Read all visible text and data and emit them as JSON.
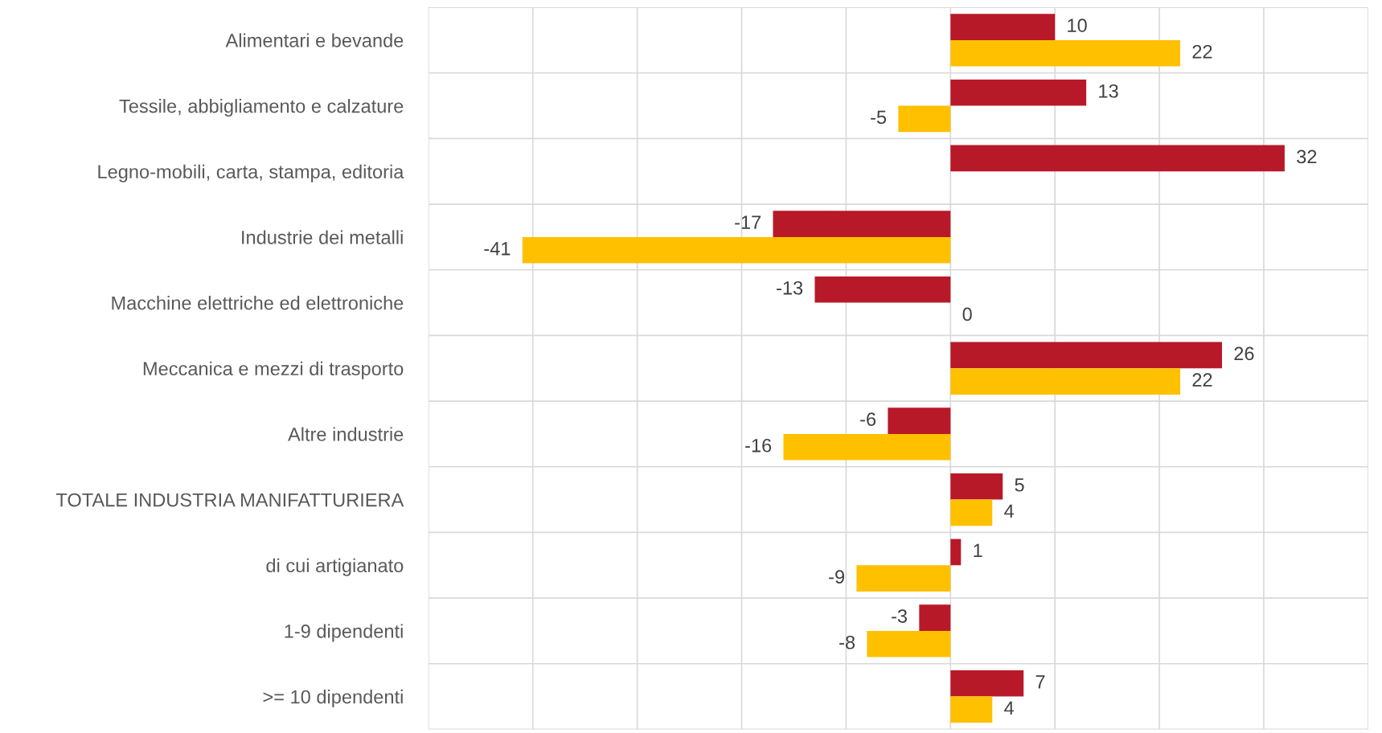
{
  "chart_data": {
    "type": "bar",
    "orientation": "horizontal",
    "categories": [
      "Alimentari e bevande",
      "Tessile, abbigliamento e calzature",
      "Legno-mobili, carta, stampa, editoria",
      "Industrie dei metalli",
      "Macchine elettriche ed elettroniche",
      "Meccanica e mezzi di trasporto",
      "Altre industrie",
      "TOTALE INDUSTRIA MANIFATTURIERA",
      "di cui artigianato",
      "1-9 dipendenti",
      ">= 10 dipendenti"
    ],
    "series": [
      {
        "color": "#b81928",
        "values": [
          10,
          13,
          32,
          -17,
          -13,
          26,
          -6,
          5,
          1,
          -3,
          7
        ]
      },
      {
        "color": "#ffc000",
        "values": [
          22,
          -5,
          null,
          -41,
          0,
          22,
          -16,
          4,
          -9,
          -8,
          4
        ]
      }
    ],
    "xlim": [
      -50,
      40
    ],
    "xticks": [
      {
        "value": -50,
        "label": null
      },
      {
        "value": -40,
        "label": null
      },
      {
        "value": -30,
        "label": null
      },
      {
        "value": -20,
        "label": null
      },
      {
        "value": -10,
        "label": null
      },
      {
        "value": 0,
        "label": null
      },
      {
        "value": 10,
        "label": null
      },
      {
        "value": 20,
        "label": null
      },
      {
        "value": 30,
        "label": null
      },
      {
        "value": 40,
        "label": null
      }
    ],
    "tick_labels": "y",
    "grid": true,
    "data_labels": true,
    "legend": false
  }
}
